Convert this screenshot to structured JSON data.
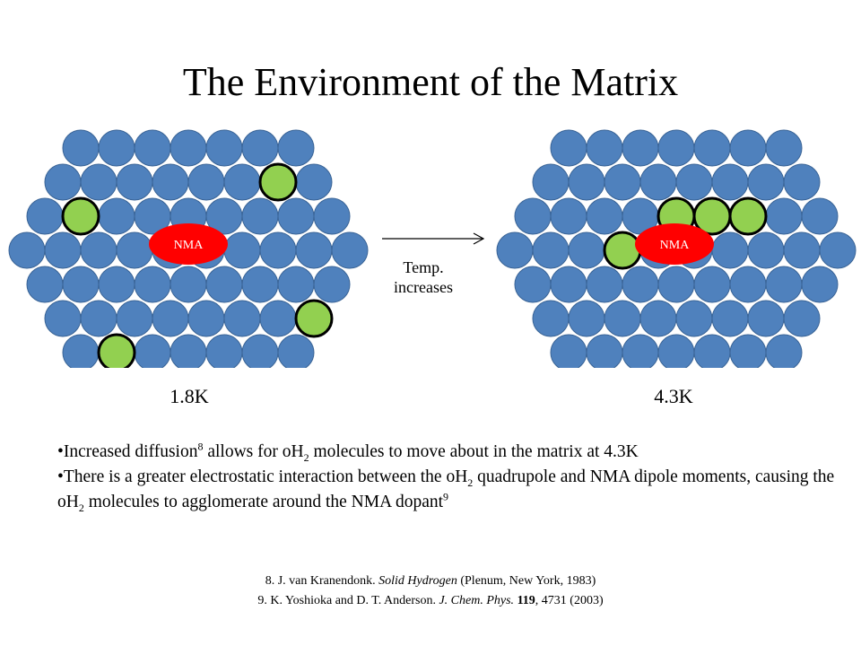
{
  "title": "The Environment of the Matrix",
  "colors": {
    "matrix_molecule": "#4f81bd",
    "matrix_outline": "#3a6496",
    "oh2_molecule": "#92d050",
    "oh2_outline": "#000000",
    "nma_fill": "#ff0000",
    "nma_text": "#ffffff"
  },
  "left_panel": {
    "nma_label": "NMA",
    "temperature": "1.8K"
  },
  "right_panel": {
    "nma_label": "NMA",
    "temperature": "4.3K"
  },
  "arrow": {
    "label_line1": "Temp.",
    "label_line2": "increases"
  },
  "bullets": [
    {
      "b": "•",
      "p1": "Increased diffusion",
      "sup1": "8",
      "p2": " allows for oH",
      "sub1": "2",
      "p3": " molecules to move about in the matrix at 4.3K"
    },
    {
      "b": "•",
      "p1": "There is a greater electrostatic interaction between the oH",
      "sub1": "2",
      "p2": " quadrupole and NMA dipole moments, causing the oH",
      "sub2": "2",
      "p3": " molecules to agglomerate around the NMA dopant",
      "sup1": "9"
    }
  ],
  "references": [
    {
      "pre": "8.  J. van Kranendonk. ",
      "title": "Solid Hydrogen",
      "post": " (Plenum, New York, 1983)"
    },
    {
      "pre": "9.  K. Yoshioka and D. T. Anderson. ",
      "journal": "J. Chem. Phys.",
      "space": " ",
      "volume": "119",
      "post": ", 4731 (2003)"
    }
  ]
}
